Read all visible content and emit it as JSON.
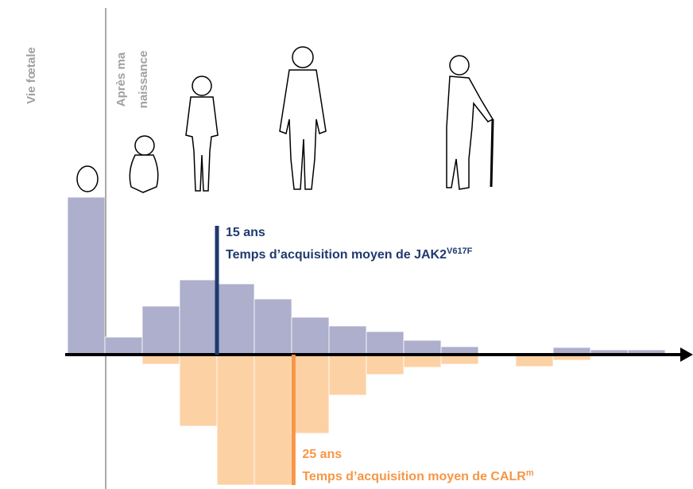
{
  "chart_data": {
    "type": "bar",
    "side_labels": [
      "Vie fœtale",
      "Après ma",
      "naissance"
    ],
    "categories": [
      null,
      null,
      null,
      null,
      null,
      null,
      null,
      null,
      null,
      null,
      null,
      null,
      null,
      null,
      null,
      null
    ],
    "series": [
      {
        "name": "JAK2",
        "color": "#aeaecd",
        "values": [
          198,
          22,
          61,
          94,
          89,
          70,
          47,
          36,
          29,
          18,
          10,
          0,
          0,
          9,
          6,
          6
        ]
      },
      {
        "name": "CALR",
        "color": "#fcd1a4",
        "values": [
          0,
          0,
          -12,
          -90,
          -164,
          -164,
          -99,
          -51,
          -25,
          -16,
          -12,
          0,
          -15,
          -7,
          0,
          0
        ]
      }
    ],
    "ylim": [
      -165,
      200
    ],
    "annotations": [
      {
        "label": "15 ans",
        "text": "Temps d’acquisition moyen de JAK2",
        "superscript": "V617F",
        "x": 4.0,
        "color": "#1f3a6e"
      },
      {
        "label": "25 ans",
        "text": "Temps d’acquisition moyen de CALR",
        "superscript": "m",
        "x": 6.05,
        "color": "#f79646"
      }
    ]
  }
}
